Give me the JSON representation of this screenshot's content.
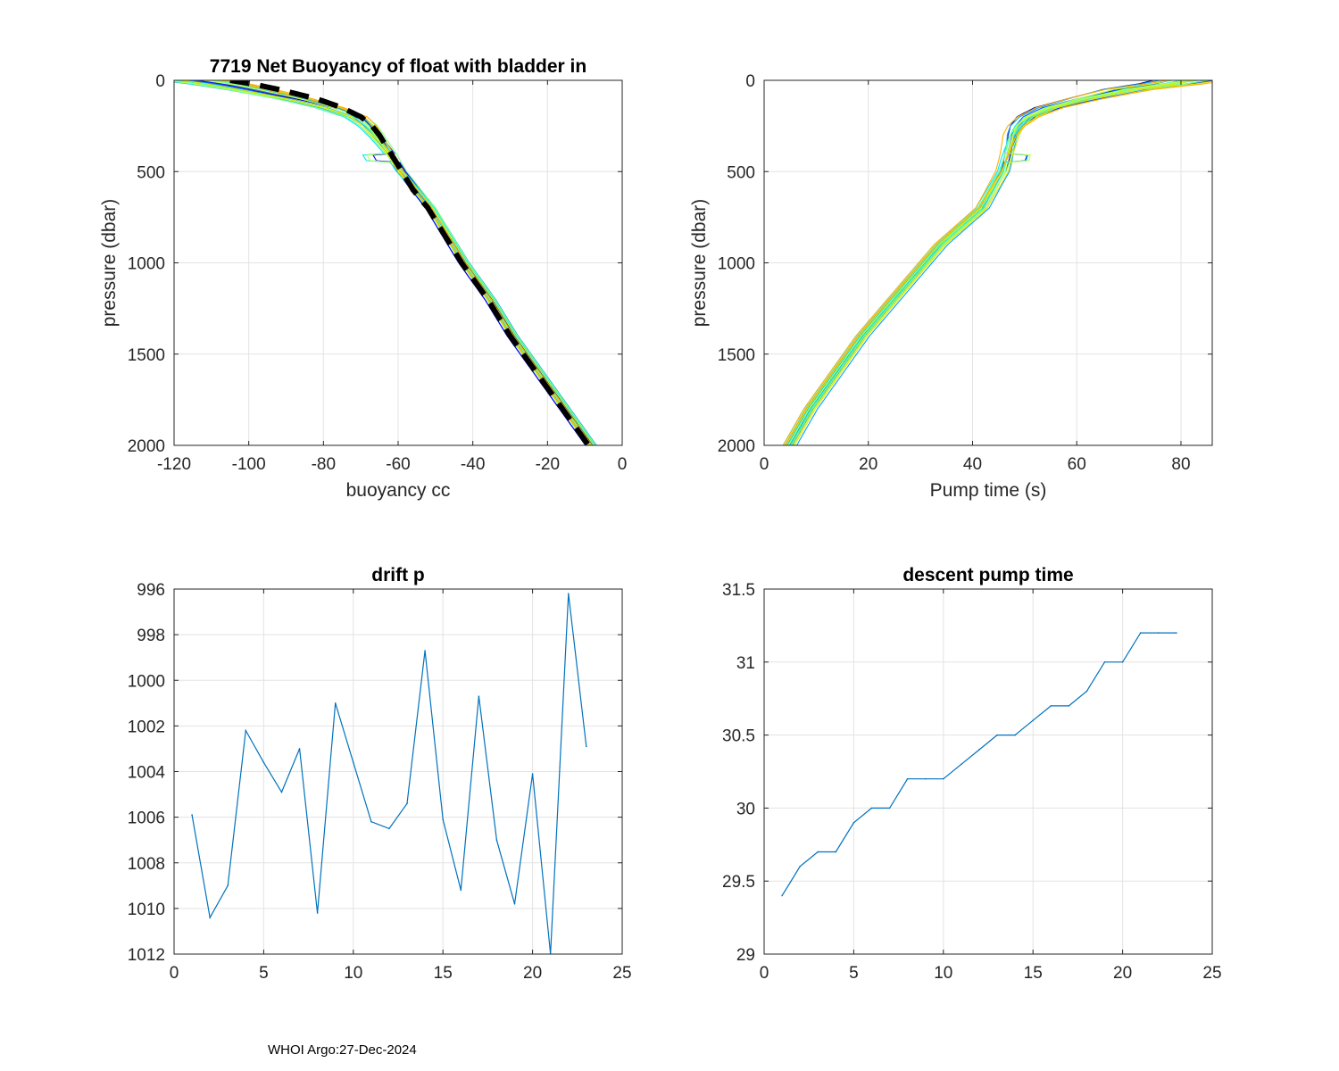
{
  "footer": "WHOI Argo:27-Dec-2024",
  "colors": {
    "series": "#0072bd",
    "mean": "#000000",
    "profiles": [
      "#00008f",
      "#0000ff",
      "#0050ff",
      "#00a0ff",
      "#00e5ff",
      "#40ffbf",
      "#80ff80",
      "#bfff40",
      "#e5e500",
      "#ffb000"
    ]
  },
  "chart_data": [
    {
      "id": "buoyancy",
      "type": "line",
      "title": "7719 Net Buoyancy of float with bladder in",
      "xlabel": "buoyancy cc",
      "ylabel": "pressure (dbar)",
      "xlim": [
        -120,
        0
      ],
      "ylim": [
        0,
        2000
      ],
      "y_reversed": true,
      "xticks": [
        "-120",
        "-100",
        "-80",
        "-60",
        "-40",
        "-20",
        "0"
      ],
      "xtick_values": [
        -120,
        -100,
        -80,
        -60,
        -40,
        -20,
        0
      ],
      "yticks": [
        "0",
        "500",
        "1000",
        "1500",
        "2000"
      ],
      "ytick_values": [
        0,
        500,
        1000,
        1500,
        2000
      ],
      "base_profile": {
        "pressure": [
          0,
          20,
          50,
          100,
          150,
          200,
          250,
          300,
          400,
          500,
          600,
          700,
          800,
          900,
          1000,
          1200,
          1400,
          1600,
          1800,
          2000
        ],
        "value": [
          -115,
          -108,
          -100,
          -88,
          -78,
          -71,
          -68,
          -66,
          -62,
          -59,
          -55,
          -51,
          -48,
          -45,
          -42,
          -35,
          -29,
          -22,
          -15,
          -8
        ]
      },
      "mean_profile": {
        "pressure": [
          0,
          20,
          50,
          100,
          150,
          200,
          250,
          300,
          400,
          500,
          600,
          700,
          800,
          900,
          1000,
          1200,
          1400,
          1600,
          1800,
          2000
        ],
        "value": [
          -105,
          -99,
          -92,
          -82,
          -75,
          -70,
          -67,
          -65,
          -62,
          -59,
          -56,
          -52,
          -49,
          -46,
          -43,
          -36,
          -30,
          -23,
          -16,
          -9
        ]
      },
      "profile_count": 23
    },
    {
      "id": "pump",
      "type": "line",
      "title": "",
      "xlabel": "Pump time (s)",
      "ylabel": "pressure (dbar)",
      "xlim": [
        0,
        86
      ],
      "ylim": [
        0,
        2000
      ],
      "y_reversed": true,
      "xticks": [
        "0",
        "20",
        "40",
        "60",
        "80"
      ],
      "xtick_values": [
        0,
        20,
        40,
        60,
        80
      ],
      "yticks": [
        "0",
        "500",
        "1000",
        "1500",
        "2000"
      ],
      "ytick_values": [
        0,
        500,
        1000,
        1500,
        2000
      ],
      "base_profile": {
        "pressure": [
          0,
          20,
          50,
          100,
          150,
          200,
          250,
          300,
          400,
          500,
          600,
          700,
          800,
          900,
          1000,
          1200,
          1400,
          1600,
          1800,
          2000
        ],
        "value": [
          82,
          78,
          70,
          62,
          55,
          51,
          49,
          48,
          47,
          46,
          44,
          42,
          38,
          34,
          31,
          25,
          19,
          14,
          9,
          5
        ]
      },
      "profile_count": 23
    },
    {
      "id": "drift",
      "type": "line",
      "title": "drift p",
      "xlabel": "",
      "ylabel": "",
      "xlim": [
        0,
        25
      ],
      "ylim": [
        996,
        1012
      ],
      "y_reversed": true,
      "xticks": [
        "0",
        "5",
        "10",
        "15",
        "20",
        "25"
      ],
      "xtick_values": [
        0,
        5,
        10,
        15,
        20,
        25
      ],
      "yticks": [
        "996",
        "998",
        "1000",
        "1002",
        "1004",
        "1006",
        "1008",
        "1010",
        "1012"
      ],
      "ytick_values": [
        996,
        998,
        1000,
        1002,
        1004,
        1006,
        1008,
        1010,
        1012
      ],
      "x": [
        1,
        2,
        3,
        4,
        5,
        6,
        7,
        8,
        9,
        10,
        11,
        12,
        13,
        14,
        15,
        16,
        17,
        18,
        19,
        20,
        21,
        22,
        23
      ],
      "y": [
        1005.9,
        1010.4,
        1009.0,
        1002.2,
        1003.6,
        1004.9,
        1003.0,
        1010.2,
        1001.0,
        1003.6,
        1006.2,
        1006.5,
        1005.4,
        998.7,
        1006.1,
        1009.2,
        1000.7,
        1007.0,
        1009.8,
        1004.1,
        1012.0,
        996.2,
        1002.9
      ]
    },
    {
      "id": "descent",
      "type": "line",
      "title": "descent pump time",
      "xlabel": "",
      "ylabel": "",
      "xlim": [
        0,
        25
      ],
      "ylim": [
        29,
        31.5
      ],
      "y_reversed": false,
      "xticks": [
        "0",
        "5",
        "10",
        "15",
        "20",
        "25"
      ],
      "xtick_values": [
        0,
        5,
        10,
        15,
        20,
        25
      ],
      "yticks": [
        "29",
        "29.5",
        "30",
        "30.5",
        "31",
        "31.5"
      ],
      "ytick_values": [
        29,
        29.5,
        30,
        30.5,
        31,
        31.5
      ],
      "x": [
        1,
        2,
        3,
        4,
        5,
        6,
        7,
        8,
        9,
        10,
        11,
        12,
        13,
        14,
        15,
        16,
        17,
        18,
        19,
        20,
        21,
        22,
        23
      ],
      "y": [
        29.4,
        29.6,
        29.7,
        29.7,
        29.9,
        30.0,
        30.0,
        30.2,
        30.2,
        30.2,
        30.3,
        30.4,
        30.5,
        30.5,
        30.6,
        30.7,
        30.7,
        30.8,
        31.0,
        31.0,
        31.2,
        31.2,
        31.2
      ]
    }
  ]
}
